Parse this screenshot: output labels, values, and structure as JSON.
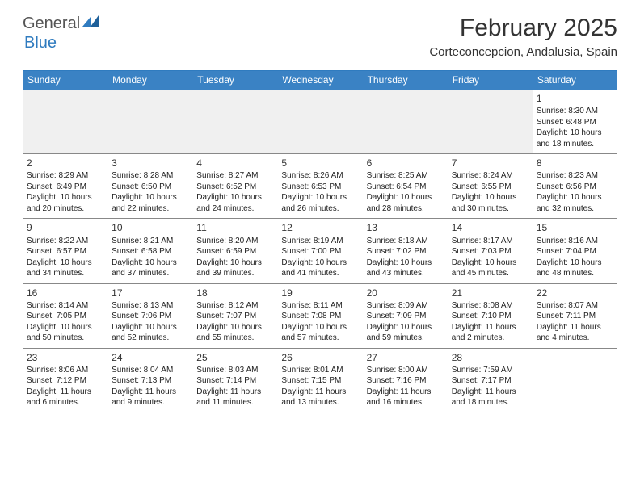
{
  "brand": {
    "general": "General",
    "blue": "Blue",
    "logo_color": "#2f7bbf"
  },
  "title": "February 2025",
  "location": "Corteconcepcion, Andalusia, Spain",
  "colors": {
    "header_bar": "#3a82c4",
    "header_border": "#2f7bbf",
    "row_border": "#888888",
    "blank_bg": "#f0f0f0",
    "text": "#333333"
  },
  "dow": [
    "Sunday",
    "Monday",
    "Tuesday",
    "Wednesday",
    "Thursday",
    "Friday",
    "Saturday"
  ],
  "weeks": [
    [
      null,
      null,
      null,
      null,
      null,
      null,
      {
        "n": "1",
        "sr": "Sunrise: 8:30 AM",
        "ss": "Sunset: 6:48 PM",
        "dl": "Daylight: 10 hours and 18 minutes."
      }
    ],
    [
      {
        "n": "2",
        "sr": "Sunrise: 8:29 AM",
        "ss": "Sunset: 6:49 PM",
        "dl": "Daylight: 10 hours and 20 minutes."
      },
      {
        "n": "3",
        "sr": "Sunrise: 8:28 AM",
        "ss": "Sunset: 6:50 PM",
        "dl": "Daylight: 10 hours and 22 minutes."
      },
      {
        "n": "4",
        "sr": "Sunrise: 8:27 AM",
        "ss": "Sunset: 6:52 PM",
        "dl": "Daylight: 10 hours and 24 minutes."
      },
      {
        "n": "5",
        "sr": "Sunrise: 8:26 AM",
        "ss": "Sunset: 6:53 PM",
        "dl": "Daylight: 10 hours and 26 minutes."
      },
      {
        "n": "6",
        "sr": "Sunrise: 8:25 AM",
        "ss": "Sunset: 6:54 PM",
        "dl": "Daylight: 10 hours and 28 minutes."
      },
      {
        "n": "7",
        "sr": "Sunrise: 8:24 AM",
        "ss": "Sunset: 6:55 PM",
        "dl": "Daylight: 10 hours and 30 minutes."
      },
      {
        "n": "8",
        "sr": "Sunrise: 8:23 AM",
        "ss": "Sunset: 6:56 PM",
        "dl": "Daylight: 10 hours and 32 minutes."
      }
    ],
    [
      {
        "n": "9",
        "sr": "Sunrise: 8:22 AM",
        "ss": "Sunset: 6:57 PM",
        "dl": "Daylight: 10 hours and 34 minutes."
      },
      {
        "n": "10",
        "sr": "Sunrise: 8:21 AM",
        "ss": "Sunset: 6:58 PM",
        "dl": "Daylight: 10 hours and 37 minutes."
      },
      {
        "n": "11",
        "sr": "Sunrise: 8:20 AM",
        "ss": "Sunset: 6:59 PM",
        "dl": "Daylight: 10 hours and 39 minutes."
      },
      {
        "n": "12",
        "sr": "Sunrise: 8:19 AM",
        "ss": "Sunset: 7:00 PM",
        "dl": "Daylight: 10 hours and 41 minutes."
      },
      {
        "n": "13",
        "sr": "Sunrise: 8:18 AM",
        "ss": "Sunset: 7:02 PM",
        "dl": "Daylight: 10 hours and 43 minutes."
      },
      {
        "n": "14",
        "sr": "Sunrise: 8:17 AM",
        "ss": "Sunset: 7:03 PM",
        "dl": "Daylight: 10 hours and 45 minutes."
      },
      {
        "n": "15",
        "sr": "Sunrise: 8:16 AM",
        "ss": "Sunset: 7:04 PM",
        "dl": "Daylight: 10 hours and 48 minutes."
      }
    ],
    [
      {
        "n": "16",
        "sr": "Sunrise: 8:14 AM",
        "ss": "Sunset: 7:05 PM",
        "dl": "Daylight: 10 hours and 50 minutes."
      },
      {
        "n": "17",
        "sr": "Sunrise: 8:13 AM",
        "ss": "Sunset: 7:06 PM",
        "dl": "Daylight: 10 hours and 52 minutes."
      },
      {
        "n": "18",
        "sr": "Sunrise: 8:12 AM",
        "ss": "Sunset: 7:07 PM",
        "dl": "Daylight: 10 hours and 55 minutes."
      },
      {
        "n": "19",
        "sr": "Sunrise: 8:11 AM",
        "ss": "Sunset: 7:08 PM",
        "dl": "Daylight: 10 hours and 57 minutes."
      },
      {
        "n": "20",
        "sr": "Sunrise: 8:09 AM",
        "ss": "Sunset: 7:09 PM",
        "dl": "Daylight: 10 hours and 59 minutes."
      },
      {
        "n": "21",
        "sr": "Sunrise: 8:08 AM",
        "ss": "Sunset: 7:10 PM",
        "dl": "Daylight: 11 hours and 2 minutes."
      },
      {
        "n": "22",
        "sr": "Sunrise: 8:07 AM",
        "ss": "Sunset: 7:11 PM",
        "dl": "Daylight: 11 hours and 4 minutes."
      }
    ],
    [
      {
        "n": "23",
        "sr": "Sunrise: 8:06 AM",
        "ss": "Sunset: 7:12 PM",
        "dl": "Daylight: 11 hours and 6 minutes."
      },
      {
        "n": "24",
        "sr": "Sunrise: 8:04 AM",
        "ss": "Sunset: 7:13 PM",
        "dl": "Daylight: 11 hours and 9 minutes."
      },
      {
        "n": "25",
        "sr": "Sunrise: 8:03 AM",
        "ss": "Sunset: 7:14 PM",
        "dl": "Daylight: 11 hours and 11 minutes."
      },
      {
        "n": "26",
        "sr": "Sunrise: 8:01 AM",
        "ss": "Sunset: 7:15 PM",
        "dl": "Daylight: 11 hours and 13 minutes."
      },
      {
        "n": "27",
        "sr": "Sunrise: 8:00 AM",
        "ss": "Sunset: 7:16 PM",
        "dl": "Daylight: 11 hours and 16 minutes."
      },
      {
        "n": "28",
        "sr": "Sunrise: 7:59 AM",
        "ss": "Sunset: 7:17 PM",
        "dl": "Daylight: 11 hours and 18 minutes."
      },
      null
    ]
  ]
}
